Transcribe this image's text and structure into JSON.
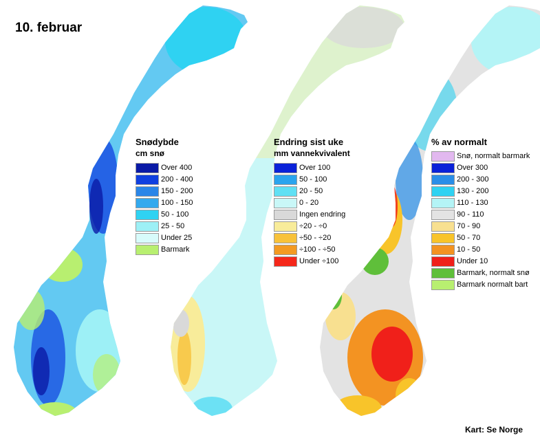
{
  "title": "10. februar",
  "credit": "Kart: Se Norge",
  "maps": [
    {
      "id": "snow-depth",
      "legend_title": "Snødybde",
      "legend_subtitle": "cm snø",
      "legend": [
        {
          "label": "Over 400",
          "color": "#0a1aa6"
        },
        {
          "label": "200 - 400",
          "color": "#1040e0"
        },
        {
          "label": "150 - 200",
          "color": "#2a86e8"
        },
        {
          "label": "100 - 150",
          "color": "#33a9ee"
        },
        {
          "label": "50 - 100",
          "color": "#2fd2f2"
        },
        {
          "label": "25 - 50",
          "color": "#9df0f6"
        },
        {
          "label": "Under 25",
          "color": "#d8fbfb"
        },
        {
          "label": "Barmark",
          "color": "#b8ef70"
        }
      ]
    },
    {
      "id": "weekly-change",
      "legend_title": "Endring sist uke",
      "legend_subtitle": "mm vannekvivalent",
      "legend": [
        {
          "label": "Over 100",
          "color": "#0a22d8"
        },
        {
          "label": "50 - 100",
          "color": "#2aa4ee"
        },
        {
          "label": "20 - 50",
          "color": "#5fe0f4"
        },
        {
          "label": "0 - 20",
          "color": "#c9f7f7"
        },
        {
          "label": "Ingen endring",
          "color": "#d9d9d9"
        },
        {
          "label": "÷20 - ÷0",
          "color": "#f8ec9a"
        },
        {
          "label": "÷50 - ÷20",
          "color": "#f8c23a"
        },
        {
          "label": "÷100 - ÷50",
          "color": "#f39a22"
        },
        {
          "label": "Under ÷100",
          "color": "#f5271a"
        }
      ]
    },
    {
      "id": "percent-normal",
      "legend_title": "% av normalt",
      "legend": [
        {
          "label": "Snø, normalt barmark",
          "color": "#e2b8ef"
        },
        {
          "label": "Over 300",
          "color": "#0a22d8"
        },
        {
          "label": "200 - 300",
          "color": "#2a8ee8"
        },
        {
          "label": "130 - 200",
          "color": "#2fd2f2"
        },
        {
          "label": "110 - 130",
          "color": "#b4f4f6"
        },
        {
          "label": "90 - 110",
          "color": "#e3e3e3"
        },
        {
          "label": "70 - 90",
          "color": "#f8e090"
        },
        {
          "label": "50 - 70",
          "color": "#f8c42a"
        },
        {
          "label": "10 - 50",
          "color": "#f39322"
        },
        {
          "label": "Under 10",
          "color": "#f0201a"
        },
        {
          "label": "Barmark, normalt snø",
          "color": "#5fbf3a"
        },
        {
          "label": "Barmark normalt bart",
          "color": "#b8ef70"
        }
      ]
    }
  ]
}
